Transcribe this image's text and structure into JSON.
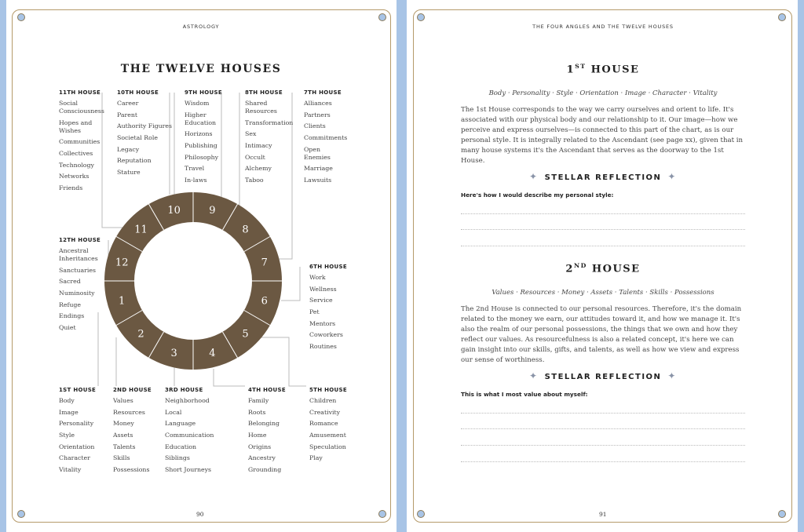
{
  "left_page": {
    "running_head": "ASTROLOGY",
    "title": "THE TWELVE HOUSES",
    "page_number": "90",
    "houses": [
      {
        "num": "1",
        "heading": "1ST HOUSE",
        "items": [
          "Body",
          "Image",
          "Personality",
          "Style",
          "Orientation",
          "Character",
          "Vitality"
        ]
      },
      {
        "num": "2",
        "heading": "2ND HOUSE",
        "items": [
          "Values",
          "Resources",
          "Money",
          "Assets",
          "Talents",
          "Skills",
          "Possessions"
        ]
      },
      {
        "num": "3",
        "heading": "3RD HOUSE",
        "items": [
          "Neighborhood",
          "Local",
          "Language",
          "Communication",
          "Education",
          "Siblings",
          "Short Journeys"
        ]
      },
      {
        "num": "4",
        "heading": "4TH HOUSE",
        "items": [
          "Family",
          "Roots",
          "Belonging",
          "Home",
          "Origins",
          "Ancestry",
          "Grounding"
        ]
      },
      {
        "num": "5",
        "heading": "5TH HOUSE",
        "items": [
          "Children",
          "Creativity",
          "Romance",
          "Amusement",
          "Speculation",
          "Play"
        ]
      },
      {
        "num": "6",
        "heading": "6TH HOUSE",
        "items": [
          "Work",
          "Wellness",
          "Service",
          "Pet",
          "Mentors",
          "Coworkers",
          "Routines"
        ]
      },
      {
        "num": "7",
        "heading": "7TH HOUSE",
        "items": [
          "Alliances",
          "Partners",
          "Clients",
          "Commitments",
          "Open\nEnemies",
          "Marriage",
          "Lawsuits"
        ]
      },
      {
        "num": "8",
        "heading": "8TH HOUSE",
        "items": [
          "Shared\nResources",
          "Transformation",
          "Sex",
          "Intimacy",
          "Occult",
          "Alchemy",
          "Taboo"
        ]
      },
      {
        "num": "9",
        "heading": "9TH HOUSE",
        "items": [
          "Wisdom",
          "Higher\nEducation",
          "Horizons",
          "Publishing",
          "Philosophy",
          "Travel",
          "In-laws"
        ]
      },
      {
        "num": "10",
        "heading": "10TH HOUSE",
        "items": [
          "Career",
          "Parent",
          "Authority Figures",
          "Societal Role",
          "Legacy",
          "Reputation",
          "Stature"
        ]
      },
      {
        "num": "11",
        "heading": "11TH HOUSE",
        "items": [
          "Social\nConsciousness",
          "Hopes and\nWishes",
          "Communities",
          "Collectives",
          "Technology",
          "Networks",
          "Friends"
        ]
      },
      {
        "num": "12",
        "heading": "12TH HOUSE",
        "items": [
          "Ancestral\nInheritances",
          "Sanctuaries",
          "Sacred",
          "Numinosity",
          "Refuge",
          "Endings",
          "Quiet"
        ]
      }
    ],
    "wheel_color": "#6b5842"
  },
  "right_page": {
    "running_head": "THE FOUR ANGLES AND THE TWELVE HOUSES",
    "page_number": "91",
    "sections": [
      {
        "title_num": "1",
        "title_sup": "ST",
        "title_rest": " HOUSE",
        "keywords": "Body · Personality · Style · Orientation · Image · Character · Vitality",
        "body": "The 1st House corresponds to the way we carry ourselves and orient to life. It's associated with our physical body and our relationship to it. Our image—how we perceive and express ourselves—is connected to this part of the chart, as is our personal style. It is integrally related to the Ascendant (see page xx), given that in many house systems it's the Ascendant that serves as the doorway to the 1st House.",
        "reflection": "STELLAR REFLECTION",
        "prompt": "Here's how I would describe my personal style:"
      },
      {
        "title_num": "2",
        "title_sup": "ND",
        "title_rest": " HOUSE",
        "keywords": "Values · Resources · Money · Assets · Talents · Skills · Possessions",
        "body": "The 2nd House is connected to our personal resources. Therefore, it's the domain related to the money we earn, our attitudes toward it, and how we manage it. It's also the realm of our personal possessions, the things that we own and how they reflect our values. As resourcefulness is also a related concept, it's here we can gain insight into our skills, gifts, and talents, as well as how we view and express our sense of worthiness.",
        "reflection": "STELLAR REFLECTION",
        "prompt": "This is what I most value about myself:"
      }
    ]
  }
}
